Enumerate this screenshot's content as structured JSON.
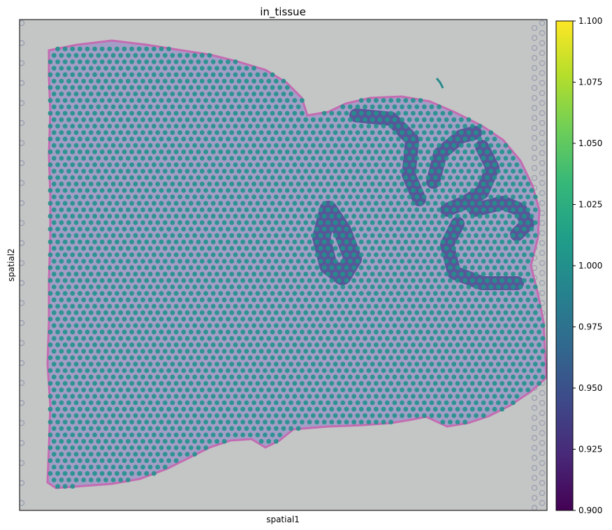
{
  "chart_data": {
    "type": "scatter",
    "title": "in_tissue",
    "xlabel": "spatial1",
    "ylabel": "spatial2",
    "x_ticks_shown": false,
    "y_ticks_shown": false,
    "background": "H&E tissue image",
    "point_value": 1.0,
    "point_color": "#21918c",
    "background_spot_color": "#9a9fb0",
    "colorbar": {
      "colormap": "viridis",
      "range": [
        0.9,
        1.1
      ],
      "ticks": [
        "0.900",
        "0.925",
        "0.950",
        "0.975",
        "1.000",
        "1.025",
        "1.050",
        "1.075",
        "1.100"
      ],
      "stops": [
        "#440154",
        "#482878",
        "#3e4989",
        "#31688e",
        "#26828e",
        "#1f9e89",
        "#35b779",
        "#6ece58",
        "#b5de2b",
        "#fde725"
      ]
    }
  }
}
